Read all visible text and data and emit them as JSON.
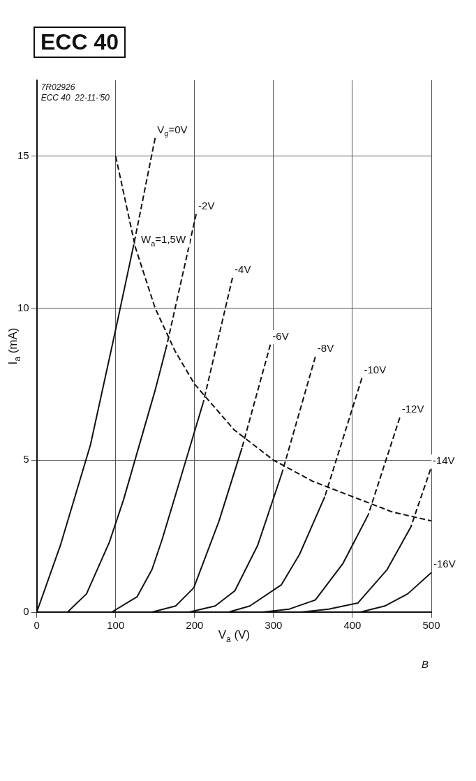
{
  "chart_data": {
    "type": "line",
    "title": "ECC 40",
    "xlabel": "V$_{a}$ (V)",
    "ylabel": "I$_{a}$ (mA)",
    "xlim": [
      0,
      500
    ],
    "ylim": [
      0,
      17.5
    ],
    "xticks": [
      0,
      100,
      200,
      300,
      400,
      500
    ],
    "yticks": [
      0,
      5,
      10,
      15
    ],
    "grid": true,
    "annotations": [
      "7R02926",
      "ECC 40  22-11-'50",
      "B"
    ],
    "series": [
      {
        "name": "V$_{g}$=0V",
        "color": "#111111",
        "line_style": "dashed",
        "x": [
          150,
          123
        ],
        "values": [
          15.6,
          12.1
        ]
      },
      {
        "color": "#111111",
        "line_style": "solid",
        "x": [
          123,
          100,
          68,
          30,
          0
        ],
        "values": [
          12.1,
          9.3,
          5.5,
          2.2,
          0
        ]
      },
      {
        "name": "-2V",
        "color": "#111111",
        "line_style": "dashed",
        "x": [
          202,
          165
        ],
        "values": [
          13.1,
          8.8
        ]
      },
      {
        "color": "#111111",
        "line_style": "solid",
        "x": [
          165,
          150,
          110,
          92,
          63,
          39
        ],
        "values": [
          8.8,
          7.3,
          3.7,
          2.3,
          0.6,
          0
        ]
      },
      {
        "name": "-4V",
        "color": "#111111",
        "line_style": "dashed",
        "x": [
          248,
          211
        ],
        "values": [
          11.0,
          6.9
        ]
      },
      {
        "color": "#111111",
        "line_style": "solid",
        "x": [
          211,
          181,
          159,
          146,
          127,
          95
        ],
        "values": [
          6.9,
          4.3,
          2.4,
          1.4,
          0.5,
          0
        ]
      },
      {
        "name": "-6V",
        "color": "#111111",
        "line_style": "dashed",
        "x": [
          296,
          260
        ],
        "values": [
          8.8,
          5.4
        ]
      },
      {
        "color": "#111111",
        "line_style": "solid",
        "x": [
          260,
          231,
          199,
          176,
          146
        ],
        "values": [
          5.4,
          3.0,
          0.8,
          0.2,
          0
        ]
      },
      {
        "name": "-8V",
        "color": "#111111",
        "line_style": "dashed",
        "x": [
          353,
          311
        ],
        "values": [
          8.4,
          4.6
        ]
      },
      {
        "color": "#111111",
        "line_style": "solid",
        "x": [
          311,
          280,
          251,
          226,
          193
        ],
        "values": [
          4.6,
          2.2,
          0.7,
          0.2,
          0
        ]
      },
      {
        "name": "-10V",
        "color": "#111111",
        "line_style": "dashed",
        "x": [
          412,
          365
        ],
        "values": [
          7.7,
          3.8
        ]
      },
      {
        "color": "#111111",
        "line_style": "solid",
        "x": [
          365,
          333,
          310,
          270,
          243
        ],
        "values": [
          3.8,
          1.9,
          0.9,
          0.2,
          0
        ]
      },
      {
        "name": "-12V",
        "color": "#111111",
        "line_style": "dashed",
        "x": [
          460,
          420
        ],
        "values": [
          6.4,
          3.2
        ]
      },
      {
        "color": "#111111",
        "line_style": "solid",
        "x": [
          420,
          388,
          353,
          320,
          286
        ],
        "values": [
          3.2,
          1.6,
          0.4,
          0.1,
          0
        ]
      },
      {
        "name": "-14V",
        "color": "#111111",
        "line_style": "dashed",
        "x": [
          499,
          474
        ],
        "values": [
          4.7,
          2.8
        ]
      },
      {
        "color": "#111111",
        "line_style": "solid",
        "x": [
          474,
          444,
          407,
          370,
          335
        ],
        "values": [
          2.8,
          1.4,
          0.3,
          0.1,
          0
        ]
      },
      {
        "name": "-16V",
        "color": "#111111",
        "line_style": "solid",
        "x": [
          500,
          470,
          441,
          410,
          385
        ],
        "values": [
          1.3,
          0.6,
          0.2,
          0.0,
          0
        ]
      },
      {
        "name": "W$_{a}$=1,5W",
        "color": "#111111",
        "line_style": "dashed",
        "x": [
          100,
          125,
          150,
          175,
          200,
          250,
          300,
          350,
          400,
          450,
          500
        ],
        "values": [
          15,
          12,
          10,
          8.6,
          7.5,
          6,
          5,
          4.3,
          3.8,
          3.3,
          3.0
        ]
      }
    ]
  }
}
